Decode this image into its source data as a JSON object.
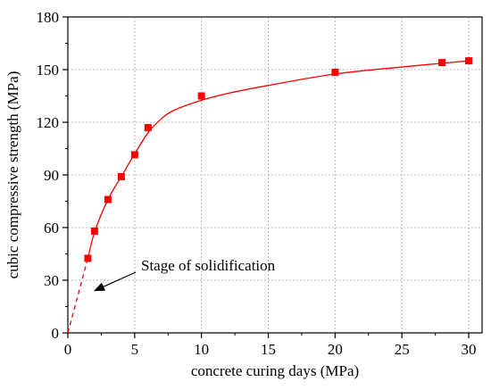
{
  "chart_data": {
    "type": "scatter",
    "xlabel": "concrete curing days (MPa)",
    "ylabel": "cubic compressive strength (MPa)",
    "xlim": [
      0,
      31
    ],
    "ylim": [
      0,
      180
    ],
    "x_ticks": [
      0,
      5,
      10,
      15,
      20,
      25,
      30
    ],
    "y_ticks": [
      0,
      30,
      60,
      90,
      120,
      150,
      180
    ],
    "grid": true,
    "colors": {
      "series": "#ff0000",
      "axis": "#000000",
      "grid": "#bbbbbb"
    },
    "series": [
      {
        "x": [
          1.5,
          2,
          3,
          4,
          5,
          6,
          10,
          20,
          28,
          30
        ],
        "y": [
          42.5,
          58,
          76,
          89,
          101.5,
          117,
          135,
          148.5,
          154,
          155
        ]
      }
    ],
    "fit_curve": {
      "x": [
        0,
        1.5,
        2,
        3,
        4,
        5,
        6,
        7,
        8,
        10,
        12,
        15,
        20,
        25,
        30
      ],
      "y": [
        0,
        42.5,
        57.5,
        76,
        89,
        102,
        114,
        122,
        127,
        132.5,
        136.5,
        141,
        147.5,
        151.5,
        155
      ]
    },
    "annotation": {
      "text": "Stage of solidification",
      "points_to": [
        1.2,
        22
      ]
    }
  }
}
